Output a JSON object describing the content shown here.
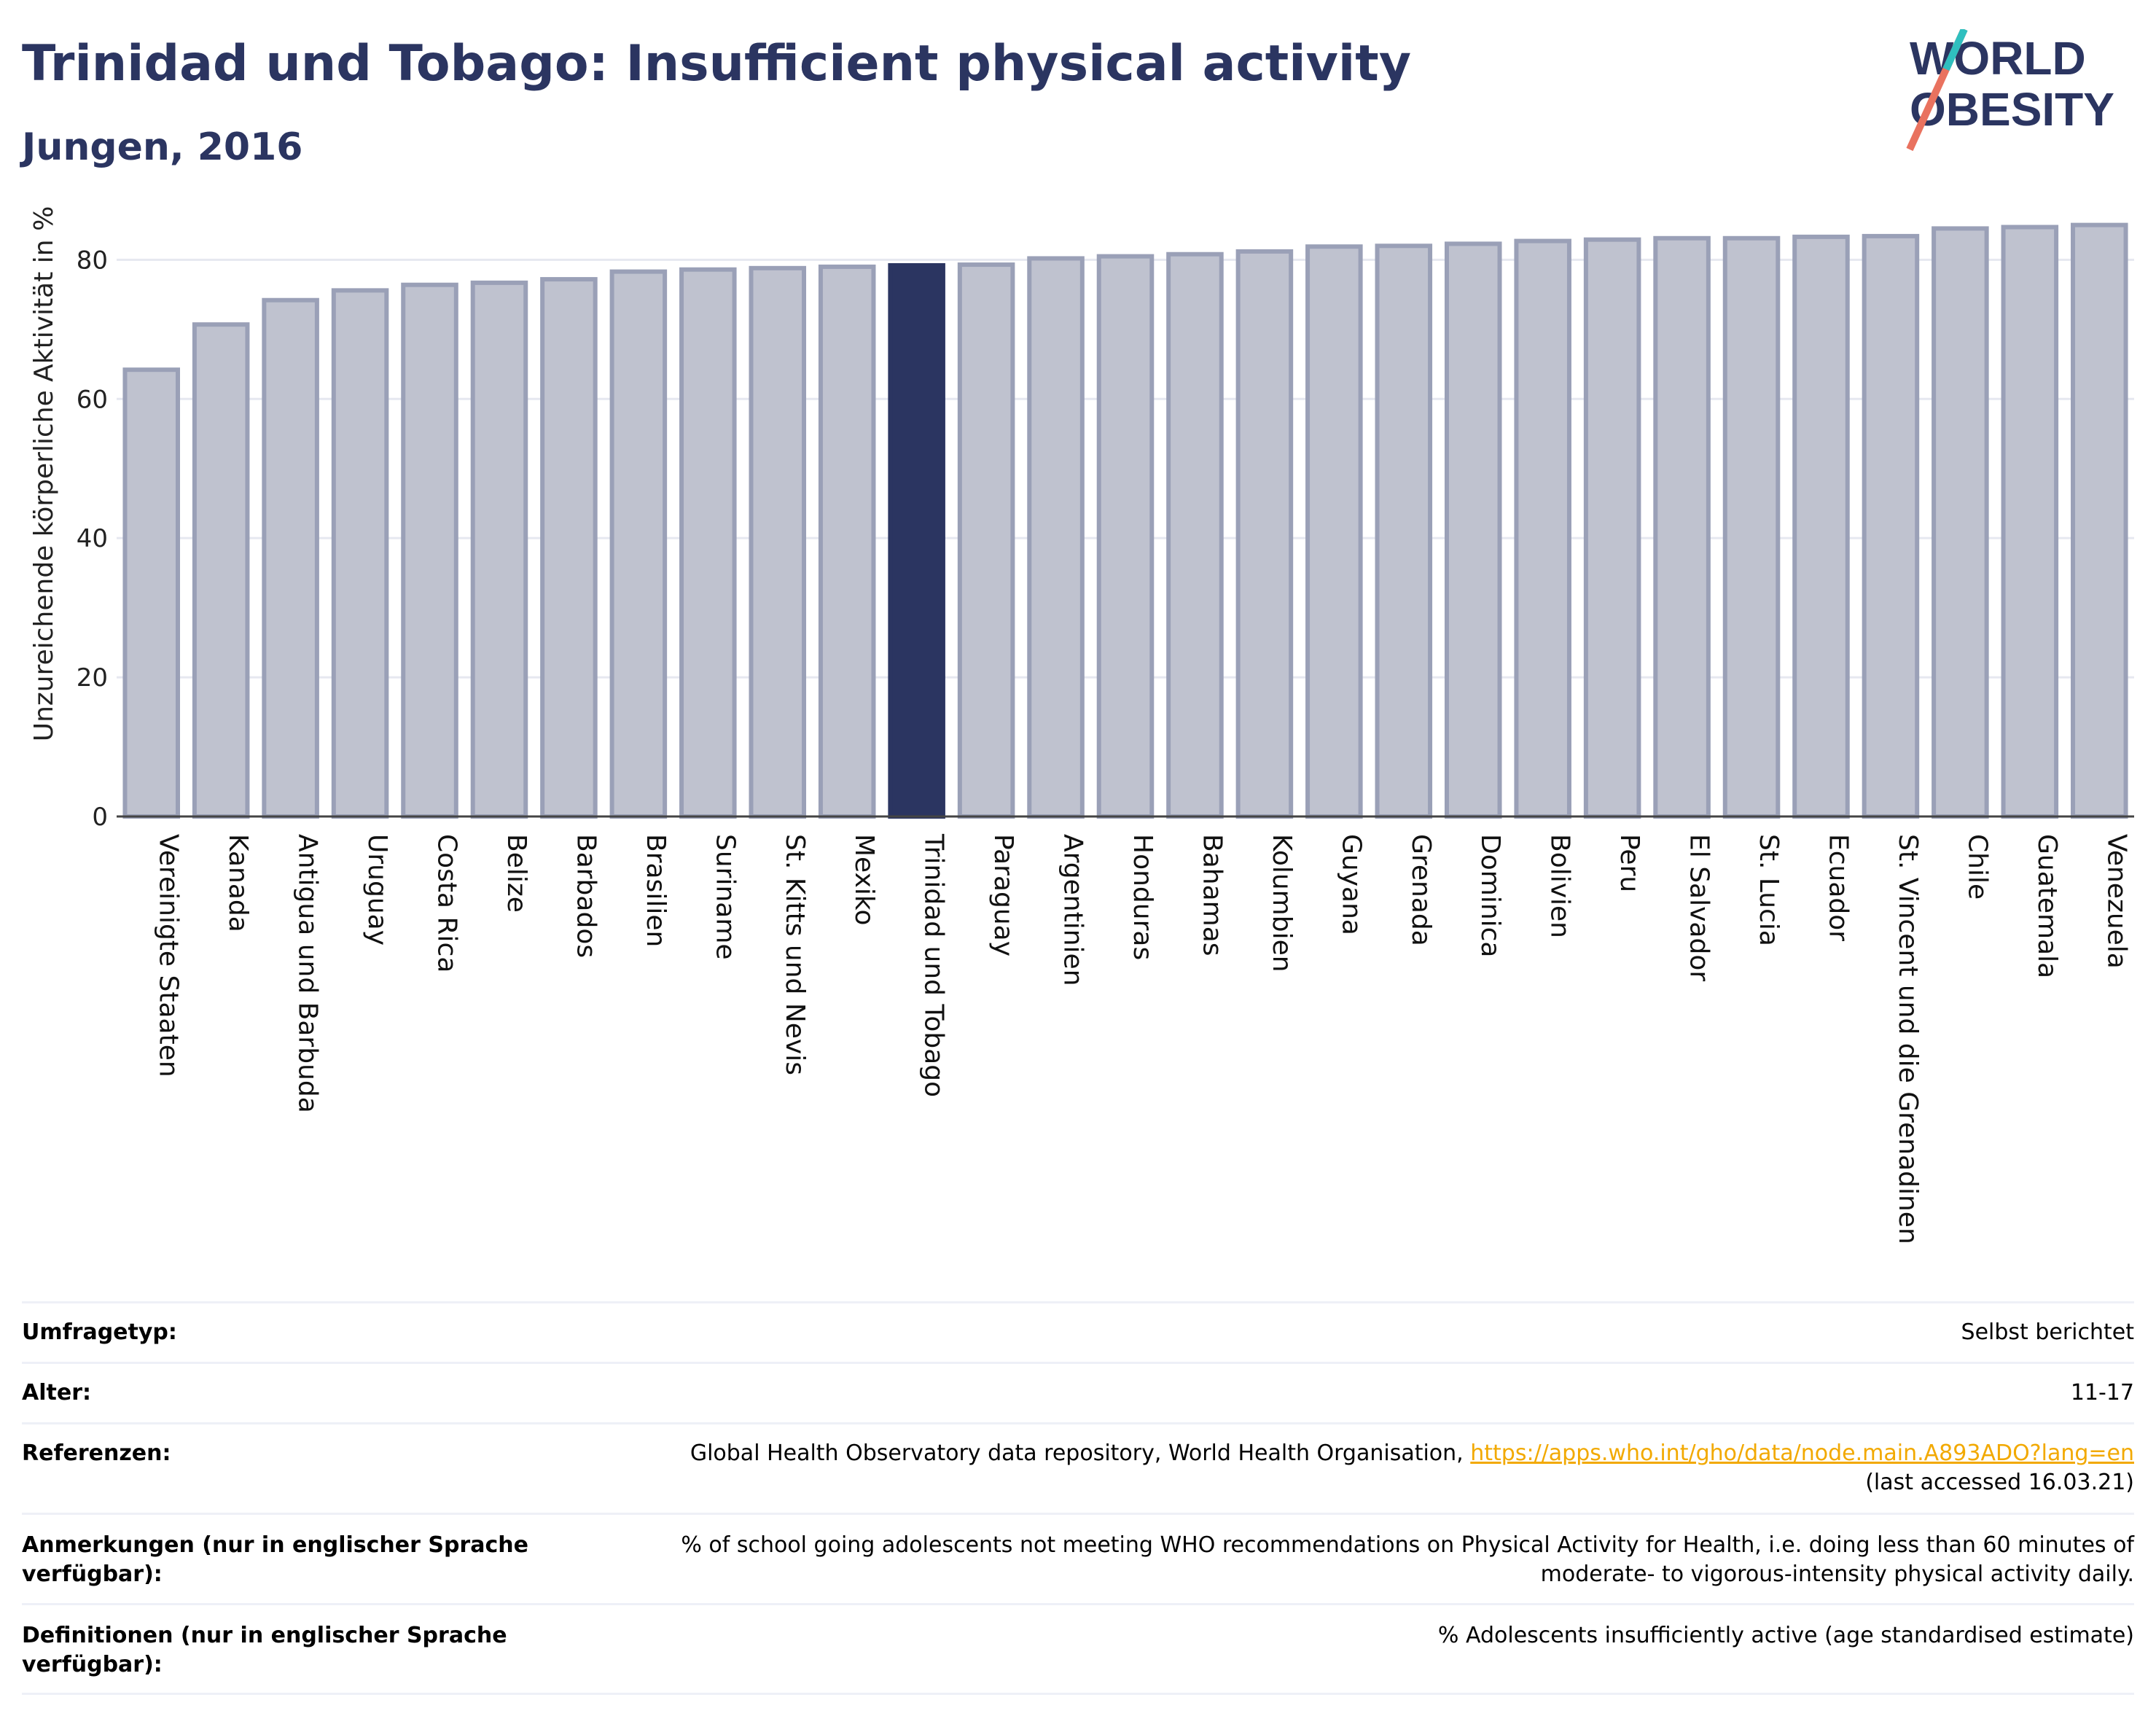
{
  "header": {
    "title": "Trinidad und Tobago: Insufficient physical activity",
    "subtitle": "Jungen, 2016"
  },
  "logo": {
    "line1": "WORLD",
    "line2": "OBESITY"
  },
  "colors": {
    "highlight": "#2b3561",
    "bar_fill": "#bfc2cf",
    "bar_stroke": "#9aa0b7",
    "link": "#f2a900",
    "title": "#2b3561"
  },
  "chart_data": {
    "type": "bar",
    "ylabel": "Unzureichende körperliche Aktivität in %",
    "ylim": [
      0,
      88
    ],
    "yticks": [
      0,
      20,
      40,
      60,
      80
    ],
    "grid": true,
    "highlight": "Trinidad und Tobago",
    "categories": [
      "Vereinigte Staaten",
      "Kanada",
      "Antigua und Barbuda",
      "Uruguay",
      "Costa Rica",
      "Belize",
      "Barbados",
      "Brasilien",
      "Suriname",
      "St. Kitts und Nevis",
      "Mexiko",
      "Trinidad und Tobago",
      "Paraguay",
      "Argentinien",
      "Honduras",
      "Bahamas",
      "Kolumbien",
      "Guyana",
      "Grenada",
      "Dominica",
      "Bolivien",
      "Peru",
      "El Salvador",
      "St. Lucia",
      "Ecuador",
      "St. Vincent und die Grenadinen",
      "Chile",
      "Guatemala",
      "Venezuela"
    ],
    "values": [
      64.2,
      70.7,
      74.2,
      75.6,
      76.4,
      76.7,
      77.2,
      78.3,
      78.6,
      78.8,
      79.0,
      79.2,
      79.3,
      80.2,
      80.5,
      80.8,
      81.2,
      81.9,
      82.0,
      82.3,
      82.7,
      82.9,
      83.1,
      83.1,
      83.3,
      83.4,
      84.5,
      84.7,
      85.0
    ]
  },
  "info": {
    "survey_type": {
      "label": "Umfragetyp:",
      "value": "Selbst berichtet"
    },
    "age": {
      "label": "Alter:",
      "value": "11-17"
    },
    "references": {
      "label": "Referenzen:",
      "text": "Global Health Observatory data repository, World Health Organisation,",
      "link": "https://apps.who.int/gho/data/node.main.A893ADO?lang=en",
      "accessed": "(last accessed 16.03.21)"
    },
    "notes": {
      "label": "Anmerkungen (nur in englischer Sprache verfügbar):",
      "value": "% of school going adolescents not meeting WHO recommendations on Physical Activity for Health, i.e. doing less than 60 minutes of moderate- to vigorous-intensity physical activity daily."
    },
    "definitions": {
      "label": "Definitionen (nur in englischer Sprache verfügbar):",
      "value": "% Adolescents insufficiently active (age standardised estimate)"
    }
  }
}
